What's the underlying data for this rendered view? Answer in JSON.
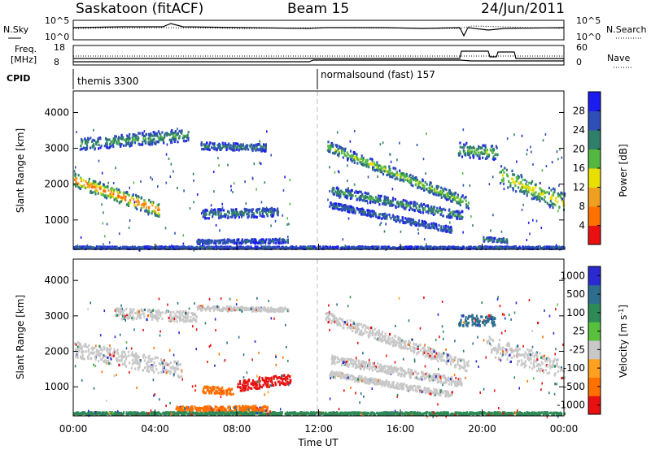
{
  "header": {
    "station": "Saskatoon (fitACF)",
    "beam": "Beam 15",
    "date": "24/Jun/2011"
  },
  "aux_labels": {
    "nsky": "N.Sky",
    "nsky_ticks": [
      "10^5",
      "10^0"
    ],
    "nsearch": "N.Search",
    "nsearch_ticks": [
      "10^5",
      "10^0"
    ],
    "freq": "Freq.",
    "freq_unit": "[MHz]",
    "freq_ticks": [
      "18",
      "8"
    ],
    "nave": "Nave",
    "nave_ticks": [
      "60",
      "0"
    ],
    "cpid": "CPID",
    "cpid_segments": [
      "themis 3300",
      "normalsound (fast) 157"
    ]
  },
  "chart_data": [
    {
      "type": "heatmap",
      "name": "power",
      "ylabel": "Slant Range [km]",
      "xlabel": "",
      "xlim": [
        0,
        24
      ],
      "ylim": [
        180,
        4600
      ],
      "yticks": [
        "1000",
        "2000",
        "3000",
        "4000"
      ],
      "colorbar_label": "Power [dB]",
      "colorbar_ticks": [
        "4",
        "8",
        "12",
        "16",
        "20",
        "24",
        "28"
      ],
      "colorbar_range": [
        0,
        30
      ],
      "colors": [
        "#1c1cf0",
        "#2f4fb8",
        "#2f7f6a",
        "#54b840",
        "#e8e000",
        "#f0a020",
        "#ff7000",
        "#e81010"
      ],
      "bands": [
        {
          "x": [
            0.0,
            4.2
          ],
          "y0": 2150,
          "y1": 1300,
          "w": 380,
          "peak": 26
        },
        {
          "x": [
            0.3,
            5.6
          ],
          "y0": 3150,
          "y1": 3400,
          "w": 350,
          "peak": 12
        },
        {
          "x": [
            6.2,
            9.4
          ],
          "y0": 3100,
          "y1": 3050,
          "w": 200,
          "peak": 10
        },
        {
          "x": [
            6.3,
            10.0
          ],
          "y0": 1200,
          "y1": 1250,
          "w": 250,
          "peak": 10
        },
        {
          "x": [
            6.0,
            10.5
          ],
          "y0": 420,
          "y1": 450,
          "w": 120,
          "peak": 8
        },
        {
          "x": [
            12.3,
            19.3
          ],
          "y0": 3100,
          "y1": 1500,
          "w": 300,
          "peak": 16
        },
        {
          "x": [
            12.6,
            19.0
          ],
          "y0": 1850,
          "y1": 1150,
          "w": 250,
          "peak": 12
        },
        {
          "x": [
            12.5,
            18.5
          ],
          "y0": 1450,
          "y1": 750,
          "w": 170,
          "peak": 9
        },
        {
          "x": [
            18.8,
            20.8
          ],
          "y0": 3000,
          "y1": 2900,
          "w": 400,
          "peak": 14
        },
        {
          "x": [
            20.8,
            24.0
          ],
          "y0": 2300,
          "y1": 1500,
          "w": 550,
          "peak": 18
        },
        {
          "x": [
            20.0,
            21.2
          ],
          "y0": 500,
          "y1": 450,
          "w": 120,
          "peak": 12
        },
        {
          "x": [
            0.0,
            24.0
          ],
          "y0": 260,
          "y1": 260,
          "w": 60,
          "peak": 8
        }
      ]
    },
    {
      "type": "heatmap",
      "name": "velocity",
      "ylabel": "Slant Range [km]",
      "xlabel": "Time UT",
      "xlim": [
        0,
        24
      ],
      "ylim": [
        180,
        4600
      ],
      "xticks": [
        "00:00",
        "04:00",
        "08:00",
        "12:00",
        "16:00",
        "20:00",
        "00:00"
      ],
      "yticks": [
        "1000",
        "2000",
        "3000",
        "4000"
      ],
      "colorbar_label": "Velocity [m s",
      "colorbar_label_sup": "-1",
      "colorbar_label_end": "]",
      "colorbar_ticks": [
        "1000",
        "500",
        "100",
        "25",
        "-25",
        "-100",
        "-500",
        "-1000"
      ],
      "colors": [
        "#2a2ad0",
        "#2d6e8e",
        "#2e8b57",
        "#58c03c",
        "#c8c8c8",
        "#ffa020",
        "#ff7000",
        "#e81010"
      ],
      "bands": [
        {
          "x": [
            0.0,
            5.3
          ],
          "y0": 2100,
          "y1": 1500,
          "w": 450,
          "v": 0
        },
        {
          "x": [
            2.0,
            6.0
          ],
          "y0": 3100,
          "y1": 3000,
          "w": 300,
          "v": 0
        },
        {
          "x": [
            6.0,
            10.5
          ],
          "y0": 3250,
          "y1": 3200,
          "w": 120,
          "v": 0
        },
        {
          "x": [
            8.0,
            10.6
          ],
          "y0": 1050,
          "y1": 1250,
          "w": 280,
          "v": -500
        },
        {
          "x": [
            6.3,
            7.8
          ],
          "y0": 950,
          "y1": 900,
          "w": 200,
          "v": -100
        },
        {
          "x": [
            5.0,
            9.5
          ],
          "y0": 400,
          "y1": 420,
          "w": 150,
          "v": -100
        },
        {
          "x": [
            12.3,
            19.3
          ],
          "y0": 3000,
          "y1": 1600,
          "w": 300,
          "v": 0
        },
        {
          "x": [
            12.6,
            19.0
          ],
          "y0": 1800,
          "y1": 1150,
          "w": 230,
          "v": 0
        },
        {
          "x": [
            12.5,
            18.5
          ],
          "y0": 1400,
          "y1": 800,
          "w": 170,
          "v": 0
        },
        {
          "x": [
            20.2,
            24.0
          ],
          "y0": 2200,
          "y1": 1500,
          "w": 550,
          "v": 0
        },
        {
          "x": [
            18.8,
            20.6
          ],
          "y0": 2900,
          "y1": 2900,
          "w": 300,
          "v": 500
        },
        {
          "x": [
            0.0,
            24.0
          ],
          "y0": 280,
          "y1": 280,
          "w": 70,
          "v": 100
        }
      ]
    }
  ]
}
